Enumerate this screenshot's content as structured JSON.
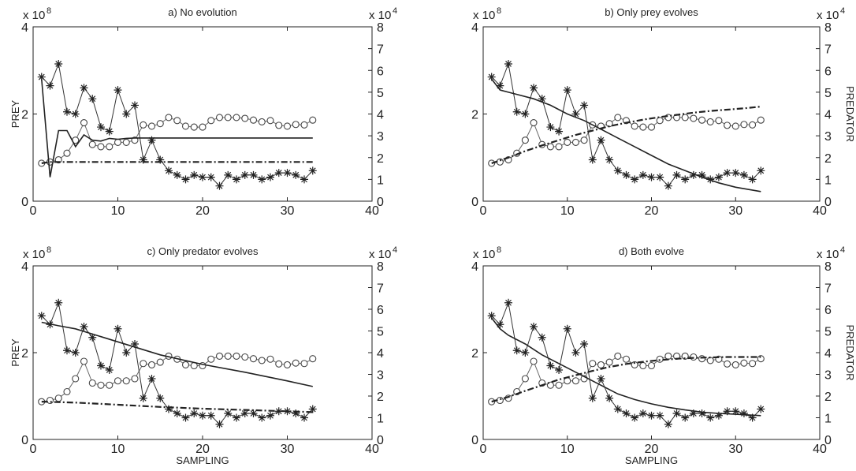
{
  "chart_data": [
    {
      "type": "line",
      "title": "a) No evolution",
      "xlabel": "",
      "ylabel": "PREY",
      "y2label": "",
      "xlim": [
        0,
        40
      ],
      "ylim": [
        0,
        4
      ],
      "y2lim": [
        0,
        8
      ],
      "y_multiplier": "x 10",
      "y_exponent": "8",
      "y2_multiplier": "x 10",
      "y2_exponent": "4",
      "xticks": [
        "0",
        "10",
        "20",
        "30",
        "40"
      ],
      "yticks": [
        "0",
        "2",
        "4"
      ],
      "y2ticks": [
        "0",
        "1",
        "2",
        "3",
        "4",
        "5",
        "6",
        "7",
        "8"
      ],
      "grid": false,
      "series": [
        {
          "axis": "left",
          "style": "circle-markers",
          "x": [
            1,
            2,
            3,
            4,
            5,
            6,
            7,
            8,
            9,
            10,
            11,
            12,
            13,
            14,
            15,
            16,
            17,
            18,
            19,
            20,
            21,
            22,
            23,
            24,
            25,
            26,
            27,
            28,
            29,
            30,
            31,
            32,
            33
          ],
          "values": [
            0.87,
            0.9,
            0.95,
            1.1,
            1.4,
            1.8,
            1.3,
            1.25,
            1.25,
            1.35,
            1.35,
            1.4,
            1.75,
            1.72,
            1.78,
            1.92,
            1.85,
            1.72,
            1.7,
            1.7,
            1.85,
            1.92,
            1.92,
            1.92,
            1.9,
            1.86,
            1.82,
            1.85,
            1.74,
            1.72,
            1.76,
            1.75,
            1.86
          ]
        },
        {
          "axis": "right",
          "style": "star-markers",
          "x": [
            1,
            2,
            3,
            4,
            5,
            6,
            7,
            8,
            9,
            10,
            11,
            12,
            13,
            14,
            15,
            16,
            17,
            18,
            19,
            20,
            21,
            22,
            23,
            24,
            25,
            26,
            27,
            28,
            29,
            30,
            31,
            32,
            33
          ],
          "values": [
            5.7,
            5.3,
            6.3,
            4.1,
            4.0,
            5.2,
            4.7,
            3.4,
            3.2,
            5.1,
            4.0,
            4.4,
            1.9,
            2.8,
            1.9,
            1.4,
            1.2,
            1.0,
            1.2,
            1.1,
            1.1,
            0.7,
            1.2,
            1.0,
            1.2,
            1.2,
            1.0,
            1.1,
            1.3,
            1.3,
            1.2,
            1.0,
            1.4
          ]
        },
        {
          "axis": "left",
          "style": "solid",
          "x": [
            1,
            2,
            3,
            4,
            5,
            6,
            7,
            8,
            9,
            10,
            11,
            12,
            13,
            14,
            15,
            20,
            25,
            30,
            33
          ],
          "values": [
            2.8,
            0.55,
            1.62,
            1.62,
            1.25,
            1.52,
            1.4,
            1.38,
            1.44,
            1.42,
            1.44,
            1.45,
            1.45,
            1.45,
            1.45,
            1.45,
            1.45,
            1.45,
            1.45
          ]
        },
        {
          "axis": "left",
          "style": "dash-dot",
          "x": [
            1,
            2,
            3,
            5,
            10,
            15,
            20,
            25,
            30,
            33
          ],
          "values": [
            0.87,
            0.9,
            0.9,
            0.9,
            0.9,
            0.9,
            0.9,
            0.9,
            0.9,
            0.9
          ]
        }
      ]
    },
    {
      "type": "line",
      "title": "b) Only prey evolves",
      "xlabel": "",
      "ylabel": "",
      "y2label": "PREDATOR",
      "xlim": [
        0,
        40
      ],
      "ylim": [
        0,
        4
      ],
      "y2lim": [
        0,
        8
      ],
      "y_multiplier": "x 10",
      "y_exponent": "8",
      "y2_multiplier": "x 10",
      "y2_exponent": "4",
      "xticks": [
        "0",
        "10",
        "20",
        "30",
        "40"
      ],
      "yticks": [
        "0",
        "2",
        "4"
      ],
      "y2ticks": [
        "0",
        "1",
        "2",
        "3",
        "4",
        "5",
        "6",
        "7",
        "8"
      ],
      "grid": false,
      "series": [
        {
          "axis": "left",
          "style": "circle-markers",
          "x": [
            1,
            2,
            3,
            4,
            5,
            6,
            7,
            8,
            9,
            10,
            11,
            12,
            13,
            14,
            15,
            16,
            17,
            18,
            19,
            20,
            21,
            22,
            23,
            24,
            25,
            26,
            27,
            28,
            29,
            30,
            31,
            32,
            33
          ],
          "values": [
            0.87,
            0.9,
            0.95,
            1.1,
            1.4,
            1.8,
            1.3,
            1.25,
            1.25,
            1.35,
            1.35,
            1.4,
            1.75,
            1.72,
            1.78,
            1.92,
            1.85,
            1.72,
            1.7,
            1.7,
            1.85,
            1.92,
            1.92,
            1.92,
            1.9,
            1.86,
            1.82,
            1.85,
            1.74,
            1.72,
            1.76,
            1.75,
            1.86
          ]
        },
        {
          "axis": "right",
          "style": "star-markers",
          "x": [
            1,
            2,
            3,
            4,
            5,
            6,
            7,
            8,
            9,
            10,
            11,
            12,
            13,
            14,
            15,
            16,
            17,
            18,
            19,
            20,
            21,
            22,
            23,
            24,
            25,
            26,
            27,
            28,
            29,
            30,
            31,
            32,
            33
          ],
          "values": [
            5.7,
            5.3,
            6.3,
            4.1,
            4.0,
            5.2,
            4.7,
            3.4,
            3.2,
            5.1,
            4.0,
            4.4,
            1.9,
            2.8,
            1.9,
            1.4,
            1.2,
            1.0,
            1.2,
            1.1,
            1.1,
            0.7,
            1.2,
            1.0,
            1.2,
            1.2,
            1.0,
            1.1,
            1.3,
            1.3,
            1.2,
            1.0,
            1.4
          ]
        },
        {
          "axis": "left",
          "style": "solid",
          "x": [
            1,
            2,
            3,
            4,
            6,
            8,
            10,
            12,
            14,
            16,
            18,
            20,
            22,
            24,
            26,
            28,
            30,
            33
          ],
          "values": [
            2.8,
            2.55,
            2.5,
            2.45,
            2.35,
            2.2,
            2.0,
            1.85,
            1.65,
            1.45,
            1.25,
            1.05,
            0.85,
            0.7,
            0.55,
            0.42,
            0.32,
            0.22
          ]
        },
        {
          "axis": "left",
          "style": "dash-dot",
          "x": [
            1,
            3,
            5,
            7,
            9,
            11,
            13,
            15,
            17,
            19,
            21,
            23,
            25,
            27,
            29,
            31,
            33
          ],
          "values": [
            0.87,
            1.0,
            1.15,
            1.28,
            1.4,
            1.52,
            1.62,
            1.72,
            1.8,
            1.87,
            1.93,
            1.98,
            2.03,
            2.07,
            2.1,
            2.13,
            2.17
          ]
        }
      ]
    },
    {
      "type": "line",
      "title": "c) Only predator evolves",
      "xlabel": "SAMPLING",
      "ylabel": "PREY",
      "y2label": "",
      "xlim": [
        0,
        40
      ],
      "ylim": [
        0,
        4
      ],
      "y2lim": [
        0,
        8
      ],
      "y_multiplier": "x 10",
      "y_exponent": "8",
      "y2_multiplier": "x 10",
      "y2_exponent": "4",
      "xticks": [
        "0",
        "10",
        "20",
        "30",
        "40"
      ],
      "yticks": [
        "0",
        "2",
        "4"
      ],
      "y2ticks": [
        "0",
        "1",
        "2",
        "3",
        "4",
        "5",
        "6",
        "7",
        "8"
      ],
      "grid": false,
      "series": [
        {
          "axis": "left",
          "style": "circle-markers",
          "x": [
            1,
            2,
            3,
            4,
            5,
            6,
            7,
            8,
            9,
            10,
            11,
            12,
            13,
            14,
            15,
            16,
            17,
            18,
            19,
            20,
            21,
            22,
            23,
            24,
            25,
            26,
            27,
            28,
            29,
            30,
            31,
            32,
            33
          ],
          "values": [
            0.87,
            0.9,
            0.95,
            1.1,
            1.4,
            1.8,
            1.3,
            1.25,
            1.25,
            1.35,
            1.35,
            1.4,
            1.75,
            1.72,
            1.78,
            1.92,
            1.85,
            1.72,
            1.7,
            1.7,
            1.85,
            1.92,
            1.92,
            1.92,
            1.9,
            1.86,
            1.82,
            1.85,
            1.74,
            1.72,
            1.76,
            1.75,
            1.86
          ]
        },
        {
          "axis": "right",
          "style": "star-markers",
          "x": [
            1,
            2,
            3,
            4,
            5,
            6,
            7,
            8,
            9,
            10,
            11,
            12,
            13,
            14,
            15,
            16,
            17,
            18,
            19,
            20,
            21,
            22,
            23,
            24,
            25,
            26,
            27,
            28,
            29,
            30,
            31,
            32,
            33
          ],
          "values": [
            5.7,
            5.3,
            6.3,
            4.1,
            4.0,
            5.2,
            4.7,
            3.4,
            3.2,
            5.1,
            4.0,
            4.4,
            1.9,
            2.8,
            1.9,
            1.4,
            1.2,
            1.0,
            1.2,
            1.1,
            1.1,
            0.7,
            1.2,
            1.0,
            1.2,
            1.2,
            1.0,
            1.1,
            1.3,
            1.3,
            1.2,
            1.0,
            1.4
          ]
        },
        {
          "axis": "left",
          "style": "solid",
          "x": [
            1,
            3,
            5,
            10,
            15,
            20,
            25,
            30,
            33
          ],
          "values": [
            2.7,
            2.62,
            2.55,
            2.25,
            1.95,
            1.73,
            1.55,
            1.35,
            1.22
          ]
        },
        {
          "axis": "left",
          "style": "dash-dot",
          "x": [
            1,
            5,
            10,
            15,
            20,
            25,
            30,
            33
          ],
          "values": [
            0.87,
            0.85,
            0.8,
            0.75,
            0.71,
            0.68,
            0.65,
            0.63
          ]
        }
      ]
    },
    {
      "type": "line",
      "title": "d) Both evolve",
      "xlabel": "SAMPLING",
      "ylabel": "",
      "y2label": "PREDATOR",
      "xlim": [
        0,
        40
      ],
      "ylim": [
        0,
        4
      ],
      "y2lim": [
        0,
        8
      ],
      "y_multiplier": "x 10",
      "y_exponent": "8",
      "y2_multiplier": "x 10",
      "y2_exponent": "4",
      "xticks": [
        "0",
        "10",
        "20",
        "30",
        "40"
      ],
      "yticks": [
        "0",
        "2",
        "4"
      ],
      "y2ticks": [
        "0",
        "1",
        "2",
        "3",
        "4",
        "5",
        "6",
        "7",
        "8"
      ],
      "grid": false,
      "series": [
        {
          "axis": "left",
          "style": "circle-markers",
          "x": [
            1,
            2,
            3,
            4,
            5,
            6,
            7,
            8,
            9,
            10,
            11,
            12,
            13,
            14,
            15,
            16,
            17,
            18,
            19,
            20,
            21,
            22,
            23,
            24,
            25,
            26,
            27,
            28,
            29,
            30,
            31,
            32,
            33
          ],
          "values": [
            0.87,
            0.9,
            0.95,
            1.1,
            1.4,
            1.8,
            1.3,
            1.25,
            1.25,
            1.35,
            1.35,
            1.4,
            1.75,
            1.72,
            1.78,
            1.92,
            1.85,
            1.72,
            1.7,
            1.7,
            1.85,
            1.92,
            1.92,
            1.92,
            1.9,
            1.86,
            1.82,
            1.85,
            1.74,
            1.72,
            1.76,
            1.75,
            1.86
          ]
        },
        {
          "axis": "right",
          "style": "star-markers",
          "x": [
            1,
            2,
            3,
            4,
            5,
            6,
            7,
            8,
            9,
            10,
            11,
            12,
            13,
            14,
            15,
            16,
            17,
            18,
            19,
            20,
            21,
            22,
            23,
            24,
            25,
            26,
            27,
            28,
            29,
            30,
            31,
            32,
            33
          ],
          "values": [
            5.7,
            5.3,
            6.3,
            4.1,
            4.0,
            5.2,
            4.7,
            3.4,
            3.2,
            5.1,
            4.0,
            4.4,
            1.9,
            2.8,
            1.9,
            1.4,
            1.2,
            1.0,
            1.2,
            1.1,
            1.1,
            0.7,
            1.2,
            1.0,
            1.2,
            1.2,
            1.0,
            1.1,
            1.3,
            1.3,
            1.2,
            1.0,
            1.4
          ]
        },
        {
          "axis": "left",
          "style": "solid",
          "x": [
            1,
            2,
            3,
            5,
            7,
            10,
            12,
            14,
            16,
            18,
            20,
            22,
            24,
            26,
            28,
            30,
            33
          ],
          "values": [
            2.8,
            2.55,
            2.4,
            2.2,
            1.95,
            1.65,
            1.45,
            1.25,
            1.05,
            0.92,
            0.82,
            0.74,
            0.68,
            0.63,
            0.6,
            0.58,
            0.55
          ]
        },
        {
          "axis": "left",
          "style": "dash-dot",
          "x": [
            1,
            3,
            5,
            7,
            9,
            11,
            13,
            15,
            17,
            19,
            21,
            23,
            25,
            27,
            29,
            31,
            33
          ],
          "values": [
            0.87,
            0.98,
            1.12,
            1.25,
            1.38,
            1.48,
            1.58,
            1.67,
            1.74,
            1.79,
            1.83,
            1.86,
            1.88,
            1.89,
            1.9,
            1.9,
            1.9
          ]
        }
      ]
    }
  ]
}
